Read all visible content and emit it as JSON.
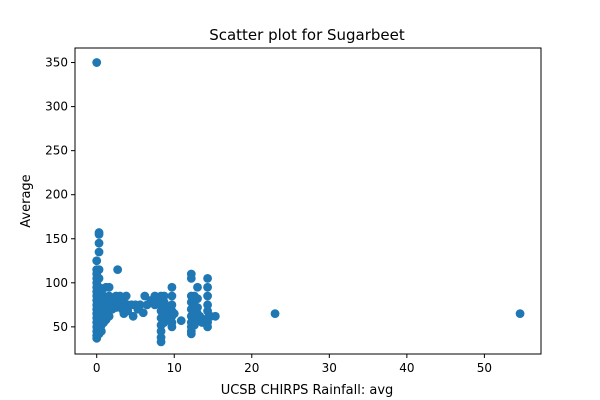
{
  "chart_data": {
    "type": "scatter",
    "title": "Scatter plot for Sugarbeet",
    "xlabel": "UCSB CHIRPS Rainfall: avg",
    "ylabel": "Average",
    "xlim": [
      -2.8,
      57.3
    ],
    "ylim": [
      19.2,
      366.5
    ],
    "xticks": [
      0,
      10,
      20,
      30,
      40,
      50
    ],
    "yticks": [
      50,
      100,
      150,
      200,
      250,
      300,
      350
    ],
    "grid": false,
    "legend": "none",
    "marker_color": "#1f77b4",
    "points": [
      [
        0.0,
        350
      ],
      [
        0.3,
        157
      ],
      [
        0.3,
        155
      ],
      [
        0.3,
        145
      ],
      [
        0.3,
        135
      ],
      [
        0.3,
        115
      ],
      [
        0.0,
        125
      ],
      [
        0.0,
        115
      ],
      [
        0.0,
        110
      ],
      [
        0.0,
        105
      ],
      [
        0.0,
        100
      ],
      [
        0.0,
        95
      ],
      [
        0.0,
        90
      ],
      [
        0.0,
        85
      ],
      [
        0.0,
        80
      ],
      [
        0.0,
        75
      ],
      [
        0.0,
        70
      ],
      [
        0.0,
        65
      ],
      [
        0.0,
        60
      ],
      [
        0.0,
        55
      ],
      [
        0.0,
        50
      ],
      [
        0.0,
        45
      ],
      [
        0.0,
        40
      ],
      [
        0.0,
        37
      ],
      [
        0.3,
        105
      ],
      [
        0.3,
        95
      ],
      [
        0.3,
        88
      ],
      [
        0.3,
        80
      ],
      [
        0.3,
        72
      ],
      [
        0.3,
        65
      ],
      [
        0.3,
        58
      ],
      [
        0.3,
        50
      ],
      [
        0.3,
        42
      ],
      [
        0.6,
        90
      ],
      [
        0.6,
        82
      ],
      [
        0.6,
        75
      ],
      [
        0.6,
        68
      ],
      [
        0.6,
        60
      ],
      [
        0.6,
        52
      ],
      [
        0.6,
        45
      ],
      [
        0.9,
        85
      ],
      [
        0.9,
        78
      ],
      [
        0.9,
        70
      ],
      [
        0.9,
        63
      ],
      [
        0.9,
        55
      ],
      [
        1.2,
        95
      ],
      [
        1.2,
        80
      ],
      [
        1.2,
        72
      ],
      [
        1.2,
        65
      ],
      [
        1.2,
        58
      ],
      [
        1.6,
        95
      ],
      [
        1.6,
        85
      ],
      [
        1.6,
        75
      ],
      [
        1.6,
        68
      ],
      [
        1.6,
        62
      ],
      [
        2.0,
        82
      ],
      [
        2.0,
        75
      ],
      [
        2.0,
        70
      ],
      [
        2.5,
        85
      ],
      [
        2.5,
        78
      ],
      [
        2.5,
        72
      ],
      [
        2.7,
        115
      ],
      [
        3.0,
        85
      ],
      [
        3.0,
        75
      ],
      [
        3.3,
        70
      ],
      [
        3.5,
        78
      ],
      [
        3.5,
        72
      ],
      [
        3.5,
        65
      ],
      [
        3.8,
        85
      ],
      [
        4.0,
        75
      ],
      [
        4.0,
        68
      ],
      [
        4.5,
        75
      ],
      [
        4.7,
        62
      ],
      [
        5.0,
        75
      ],
      [
        5.3,
        70
      ],
      [
        5.6,
        75
      ],
      [
        6.0,
        66
      ],
      [
        6.2,
        85
      ],
      [
        6.5,
        75
      ],
      [
        7.0,
        80
      ],
      [
        7.5,
        85
      ],
      [
        7.5,
        75
      ],
      [
        8.0,
        78
      ],
      [
        8.3,
        85
      ],
      [
        8.3,
        75
      ],
      [
        8.3,
        68
      ],
      [
        8.3,
        60
      ],
      [
        8.3,
        52
      ],
      [
        8.3,
        45
      ],
      [
        8.3,
        38
      ],
      [
        8.3,
        33
      ],
      [
        8.7,
        85
      ],
      [
        8.7,
        78
      ],
      [
        8.7,
        70
      ],
      [
        8.7,
        62
      ],
      [
        8.7,
        55
      ],
      [
        9.0,
        72
      ],
      [
        9.0,
        65
      ],
      [
        9.3,
        60
      ],
      [
        9.7,
        95
      ],
      [
        9.7,
        85
      ],
      [
        9.7,
        75
      ],
      [
        9.7,
        68
      ],
      [
        9.7,
        62
      ],
      [
        9.7,
        55
      ],
      [
        9.7,
        50
      ],
      [
        10.0,
        65
      ],
      [
        10.9,
        57
      ],
      [
        12.2,
        110
      ],
      [
        12.2,
        105
      ],
      [
        12.2,
        85
      ],
      [
        12.2,
        78
      ],
      [
        12.2,
        70
      ],
      [
        12.2,
        62
      ],
      [
        12.2,
        55
      ],
      [
        12.2,
        50
      ],
      [
        12.2,
        45
      ],
      [
        12.2,
        42
      ],
      [
        12.6,
        85
      ],
      [
        12.6,
        75
      ],
      [
        12.6,
        68
      ],
      [
        12.6,
        60
      ],
      [
        12.6,
        52
      ],
      [
        13.0,
        95
      ],
      [
        13.0,
        82
      ],
      [
        13.0,
        72
      ],
      [
        13.0,
        65
      ],
      [
        13.0,
        58
      ],
      [
        13.3,
        62
      ],
      [
        13.6,
        55
      ],
      [
        14.3,
        105
      ],
      [
        14.3,
        95
      ],
      [
        14.3,
        85
      ],
      [
        14.3,
        75
      ],
      [
        14.3,
        68
      ],
      [
        14.3,
        60
      ],
      [
        14.3,
        55
      ],
      [
        14.3,
        50
      ],
      [
        14.7,
        62
      ],
      [
        15.3,
        62
      ],
      [
        23.0,
        65
      ],
      [
        54.6,
        65
      ]
    ]
  }
}
